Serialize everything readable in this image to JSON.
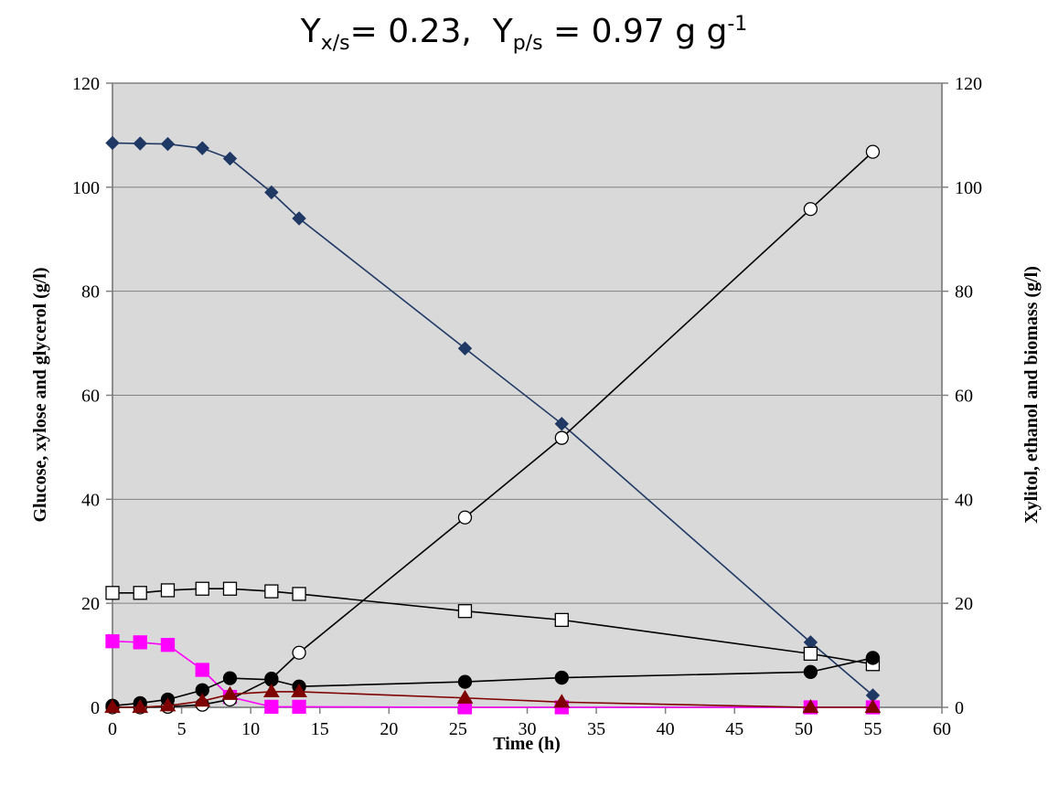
{
  "chart_data": {
    "type": "scatter",
    "title": {
      "ys_label": "Y",
      "ys_sub": "x/s",
      "ys_value": "= 0.23,",
      "yp_label": "Y",
      "yp_sub": "p/s",
      "yp_value": " = 0.97 g g",
      "yp_sup": "-1"
    },
    "xlabel": "Time (h)",
    "ylabel_left": "Glucose, xylose and glycerol (g/l)",
    "ylabel_right": "Xylitol, ethanol and biomass (g/l)",
    "xlim": [
      0,
      60
    ],
    "ylim": [
      0,
      120
    ],
    "ylim_right": [
      0,
      120
    ],
    "x_ticks": [
      "0",
      "5",
      "10",
      "15",
      "20",
      "25",
      "30",
      "35",
      "40",
      "45",
      "50",
      "55",
      "60"
    ],
    "y_ticks": [
      "0",
      "20",
      "40",
      "60",
      "80",
      "100",
      "120"
    ],
    "grid": "horizontal",
    "plot_background": "#d9d9d9",
    "series": [
      {
        "marker": "diamond",
        "color": "#1f3864",
        "fill": "#1f3864",
        "x": [
          0,
          2,
          4,
          6.5,
          8.5,
          11.5,
          13.5,
          25.5,
          32.5,
          50.5,
          55
        ],
        "y": [
          108.5,
          108.4,
          108.3,
          107.5,
          105.5,
          99,
          94,
          69,
          54.5,
          12.5,
          2.3
        ]
      },
      {
        "marker": "square",
        "color": "#000000",
        "fill": "#ffffff",
        "x": [
          0,
          2,
          4,
          6.5,
          8.5,
          11.5,
          13.5,
          25.5,
          32.5,
          50.5,
          55
        ],
        "y": [
          22,
          22,
          22.5,
          22.8,
          22.8,
          22.3,
          21.8,
          18.5,
          16.8,
          10.3,
          8.3
        ]
      },
      {
        "marker": "square",
        "color": "#ff00ff",
        "fill": "#ff00ff",
        "x": [
          0,
          2,
          4,
          6.5,
          8.5,
          11.5,
          13.5,
          25.5,
          32.5,
          50.5,
          55
        ],
        "y": [
          12.7,
          12.5,
          12,
          7.2,
          2,
          0.1,
          0.1,
          0,
          0,
          0,
          0
        ]
      },
      {
        "marker": "circle",
        "color": "#000000",
        "fill": "#ffffff",
        "x": [
          0,
          2,
          4,
          6.5,
          8.5,
          11.5,
          13.5,
          25.5,
          32.5,
          50.5,
          55
        ],
        "y": [
          0,
          0,
          0.1,
          0.5,
          1.5,
          5.5,
          10.5,
          36.5,
          51.8,
          95.8,
          106.8
        ]
      },
      {
        "marker": "circle",
        "color": "#000000",
        "fill": "#000000",
        "x": [
          0,
          2,
          4,
          6.5,
          8.5,
          11.5,
          13.5,
          25.5,
          32.5,
          50.5,
          55
        ],
        "y": [
          0.3,
          0.8,
          1.5,
          3.3,
          5.6,
          5.3,
          4,
          4.9,
          5.7,
          6.8,
          9.5
        ]
      },
      {
        "marker": "triangle",
        "color": "#7f0000",
        "fill": "#7f0000",
        "x": [
          0,
          2,
          4,
          6.5,
          8.5,
          11.5,
          13.5,
          25.5,
          32.5,
          50.5,
          55
        ],
        "y": [
          0,
          0,
          0.3,
          1.2,
          2.5,
          3,
          3,
          1.8,
          1,
          0,
          0
        ]
      }
    ]
  }
}
